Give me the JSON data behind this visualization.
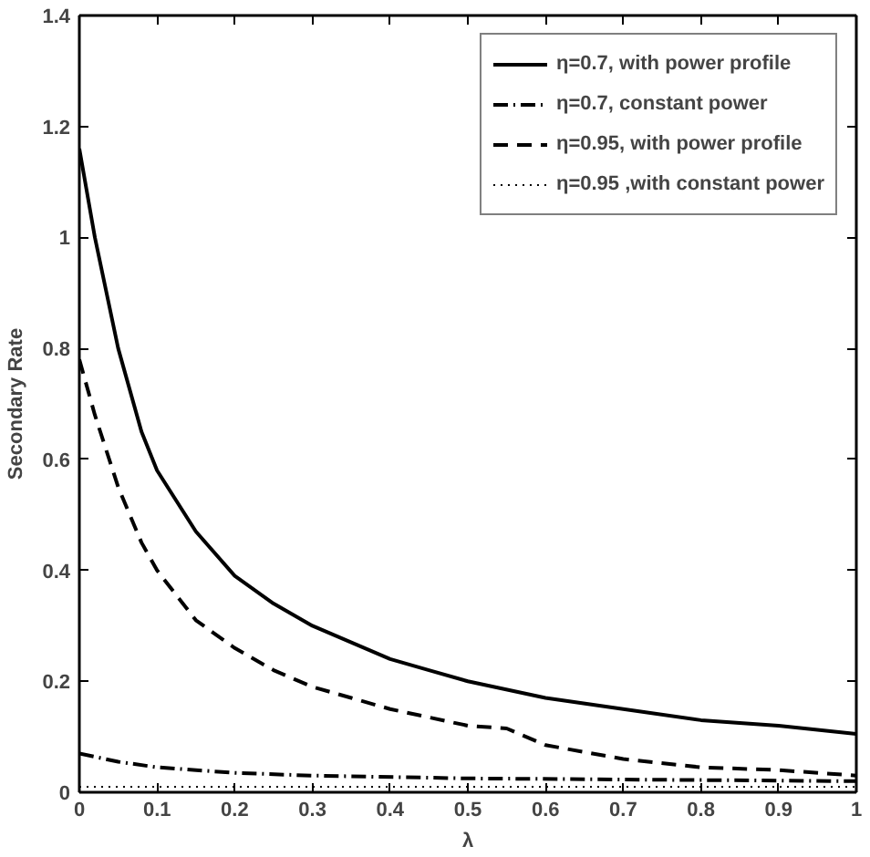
{
  "chart_data": {
    "type": "line",
    "xlabel": "λ",
    "ylabel": "Secondary Rate",
    "xlim": [
      0,
      1
    ],
    "ylim": [
      0,
      1.4
    ],
    "xticks": [
      0,
      0.1,
      0.2,
      0.3,
      0.4,
      0.5,
      0.6,
      0.7,
      0.8,
      0.9,
      1
    ],
    "yticks": [
      0,
      0.2,
      0.4,
      0.6,
      0.8,
      1,
      1.2,
      1.4
    ],
    "grid": false,
    "legend": "top right",
    "series": [
      {
        "name": "η=0.7, with power profile",
        "color": "#000000",
        "line_style": "solid",
        "x": [
          0,
          0.02,
          0.05,
          0.08,
          0.1,
          0.15,
          0.2,
          0.25,
          0.3,
          0.35,
          0.4,
          0.45,
          0.5,
          0.6,
          0.7,
          0.8,
          0.9,
          1.0
        ],
        "values": [
          1.16,
          1.0,
          0.8,
          0.65,
          0.58,
          0.47,
          0.39,
          0.34,
          0.3,
          0.27,
          0.24,
          0.22,
          0.2,
          0.17,
          0.15,
          0.13,
          0.12,
          0.105
        ]
      },
      {
        "name": "η=0.7, constant power",
        "color": "#000000",
        "line_style": "dashdot",
        "x": [
          0,
          0.05,
          0.1,
          0.2,
          0.3,
          0.5,
          0.7,
          1.0
        ],
        "values": [
          0.07,
          0.055,
          0.045,
          0.035,
          0.03,
          0.025,
          0.023,
          0.02
        ]
      },
      {
        "name": "η=0.95, with power profile",
        "color": "#000000",
        "line_style": "dashed",
        "x": [
          0,
          0.02,
          0.05,
          0.08,
          0.1,
          0.15,
          0.2,
          0.25,
          0.3,
          0.35,
          0.4,
          0.45,
          0.5,
          0.55,
          0.6,
          0.7,
          0.8,
          0.9,
          1.0
        ],
        "values": [
          0.78,
          0.68,
          0.55,
          0.45,
          0.4,
          0.31,
          0.26,
          0.22,
          0.19,
          0.17,
          0.15,
          0.135,
          0.12,
          0.115,
          0.085,
          0.06,
          0.045,
          0.04,
          0.03
        ]
      },
      {
        "name": "η=0.95 ,with constant power",
        "color": "#000000",
        "line_style": "dotted",
        "x": [
          0,
          0.5,
          1.0
        ],
        "values": [
          0.01,
          0.01,
          0.01
        ]
      }
    ]
  }
}
